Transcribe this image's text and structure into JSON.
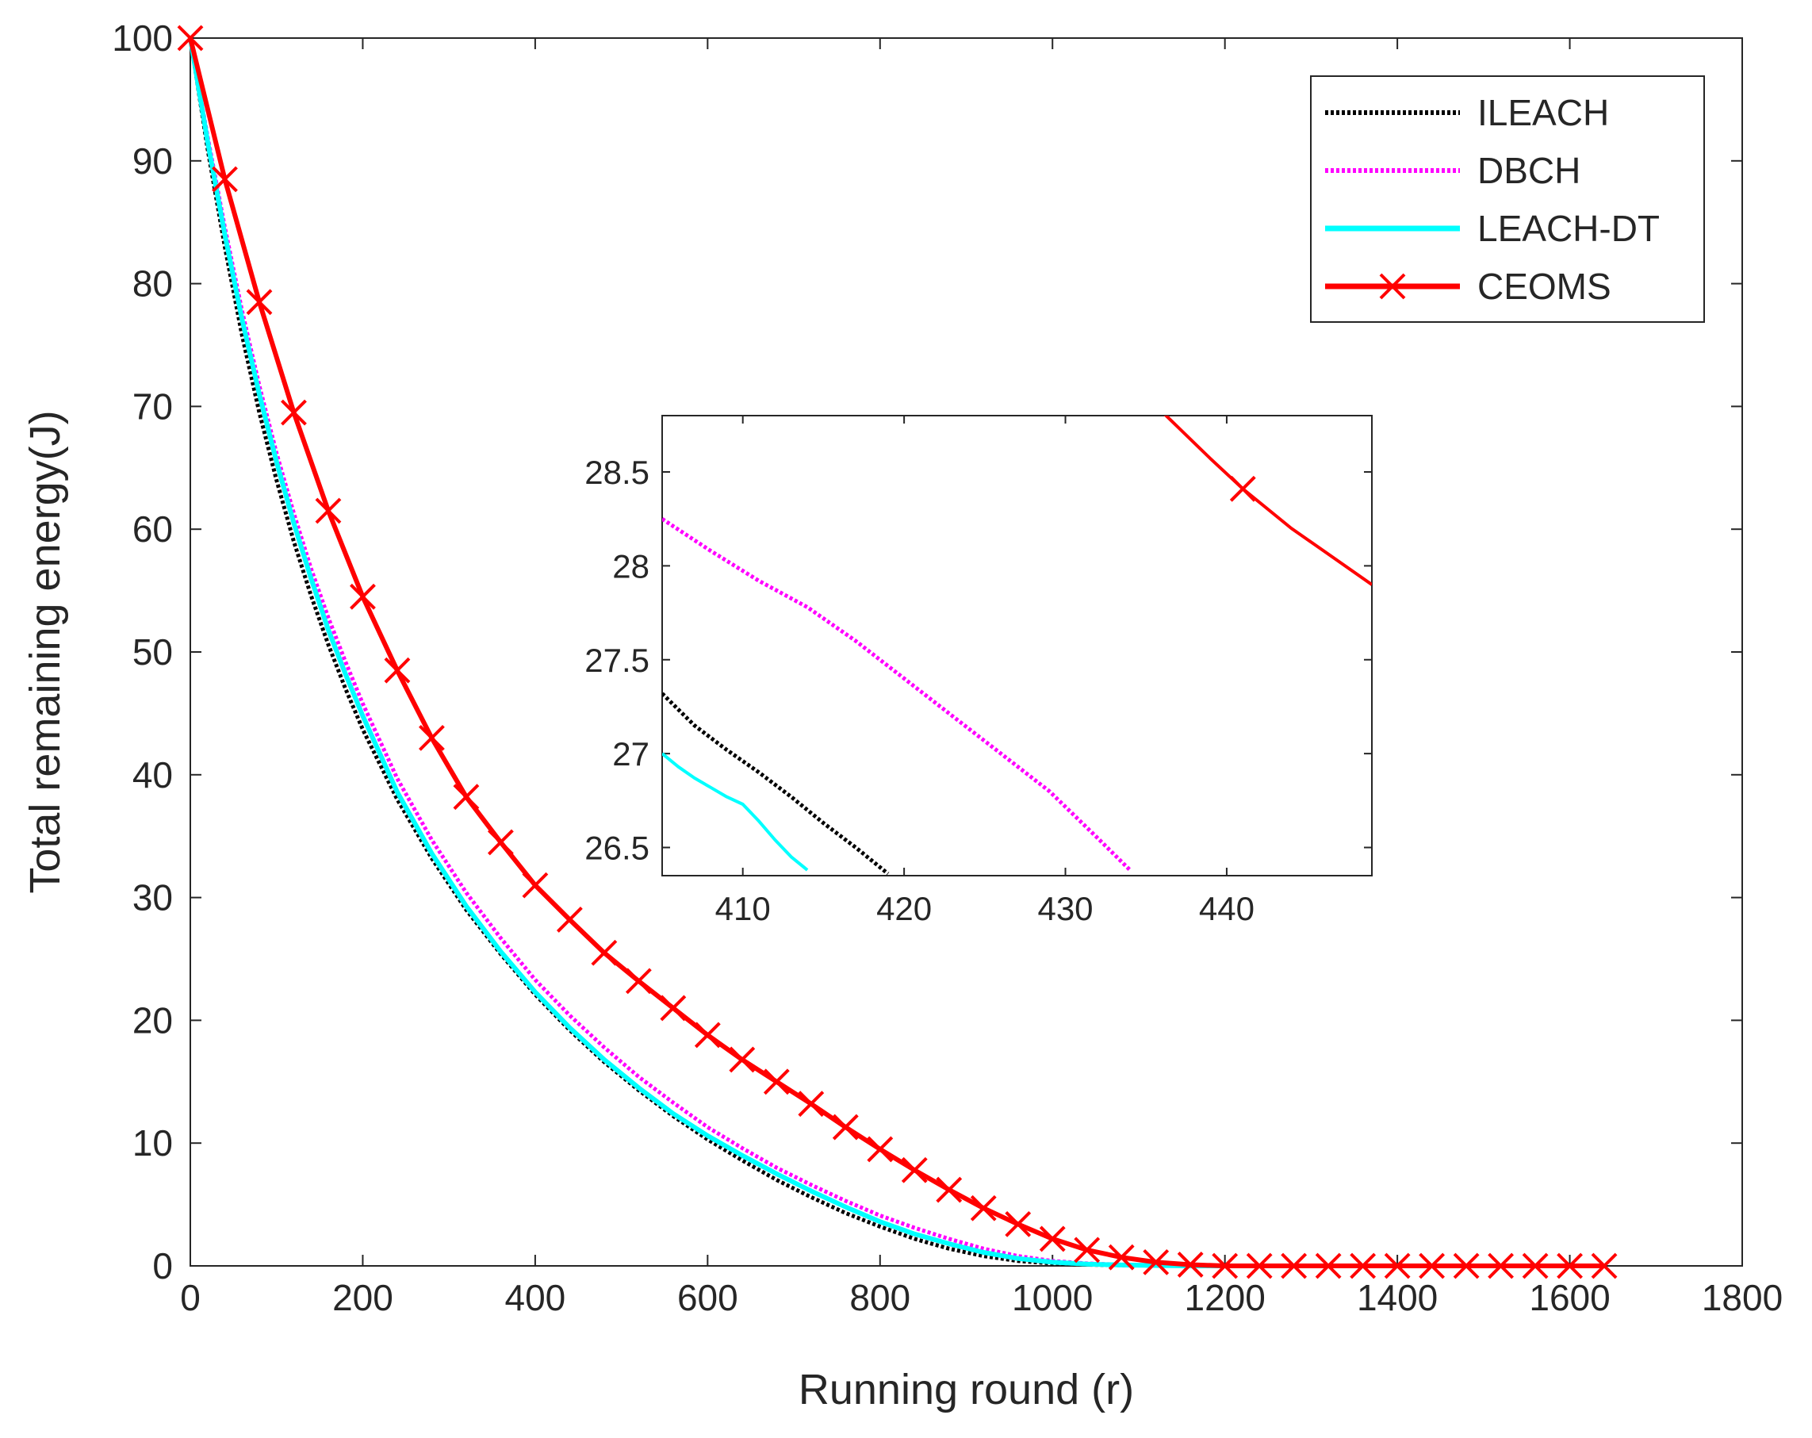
{
  "chart_data": [
    {
      "type": "line",
      "title": "",
      "xlabel": "Running round (r)",
      "ylabel": "Total remaining energy(J)",
      "xlim": [
        0,
        1800
      ],
      "ylim": [
        0,
        100
      ],
      "xticks": [
        0,
        200,
        400,
        600,
        800,
        1000,
        1200,
        1400,
        1600,
        1800
      ],
      "yticks": [
        0,
        10,
        20,
        30,
        40,
        50,
        60,
        70,
        80,
        90,
        100
      ],
      "grid": false,
      "legend_position": "top-right",
      "series": [
        {
          "name": "ILEACH",
          "color": "#000000",
          "style": "dotted",
          "marker": "none",
          "x": [
            0,
            20,
            40,
            60,
            80,
            100,
            120,
            140,
            160,
            180,
            200,
            240,
            280,
            320,
            360,
            400,
            440,
            480,
            520,
            560,
            600,
            640,
            680,
            720,
            760,
            800,
            840,
            880,
            920,
            960,
            1000,
            1040,
            1080,
            1120,
            1160,
            1200
          ],
          "y": [
            100,
            91,
            83,
            75.8,
            69.5,
            64,
            59,
            54.6,
            50.6,
            47,
            43.7,
            38,
            33.2,
            29,
            25.4,
            22.1,
            19.2,
            16.6,
            14.3,
            12.2,
            10.3,
            8.6,
            7,
            5.6,
            4.3,
            3.2,
            2.2,
            1.4,
            0.8,
            0.4,
            0.2,
            0.1,
            0.05,
            0.02,
            0,
            0
          ]
        },
        {
          "name": "DBCH",
          "color": "#ff00ff",
          "style": "dotted",
          "marker": "none",
          "x": [
            0,
            20,
            40,
            60,
            80,
            100,
            120,
            140,
            160,
            180,
            200,
            240,
            280,
            320,
            360,
            400,
            440,
            480,
            520,
            560,
            600,
            640,
            680,
            720,
            760,
            800,
            840,
            880,
            920,
            960,
            1000,
            1040,
            1080,
            1120,
            1160,
            1200,
            1240
          ],
          "y": [
            100,
            92,
            84.6,
            77.8,
            71.7,
            66.2,
            61.3,
            56.8,
            52.8,
            49.2,
            45.8,
            39.7,
            34.7,
            30.4,
            26.7,
            23.3,
            20.4,
            17.8,
            15.4,
            13.3,
            11.3,
            9.6,
            8,
            6.6,
            5.3,
            4.1,
            3.1,
            2.2,
            1.4,
            0.8,
            0.4,
            0.2,
            0.1,
            0.05,
            0.02,
            0,
            0
          ]
        },
        {
          "name": "LEACH-DT",
          "color": "#00ffff",
          "style": "solid",
          "marker": "none",
          "x": [
            0,
            20,
            40,
            60,
            80,
            100,
            120,
            140,
            160,
            180,
            200,
            240,
            280,
            320,
            360,
            400,
            440,
            480,
            520,
            560,
            600,
            640,
            680,
            720,
            760,
            800,
            840,
            880,
            920,
            960,
            1000,
            1040,
            1080,
            1120,
            1160,
            1200
          ],
          "y": [
            100,
            91.6,
            84,
            77.1,
            71,
            65.5,
            60.5,
            56,
            51.8,
            48.2,
            44.8,
            38.6,
            33.6,
            29.3,
            25.6,
            22.3,
            19.4,
            16.8,
            14.5,
            12.4,
            10.6,
            9,
            7.5,
            6.1,
            4.8,
            3.6,
            2.6,
            1.8,
            1.1,
            0.6,
            0.3,
            0.15,
            0.07,
            0.03,
            0,
            0
          ]
        },
        {
          "name": "CEOMS",
          "color": "#ff0000",
          "style": "solid",
          "marker": "x",
          "x": [
            0,
            40,
            80,
            120,
            160,
            200,
            240,
            280,
            320,
            360,
            400,
            440,
            480,
            520,
            560,
            600,
            640,
            680,
            720,
            760,
            800,
            840,
            880,
            920,
            960,
            1000,
            1040,
            1080,
            1120,
            1160,
            1200,
            1240,
            1280,
            1320,
            1360,
            1400,
            1440,
            1480,
            1520,
            1560,
            1600,
            1640
          ],
          "y": [
            100,
            88.5,
            78.5,
            69.5,
            61.5,
            54.5,
            48.5,
            43,
            38.2,
            34.5,
            31,
            28.2,
            25.5,
            23.2,
            21,
            18.8,
            16.8,
            15,
            13.2,
            11.3,
            9.5,
            7.8,
            6.2,
            4.7,
            3.4,
            2.2,
            1.3,
            0.7,
            0.3,
            0.1,
            0,
            0,
            0,
            0,
            0,
            0,
            0,
            0,
            0,
            0,
            0,
            0
          ]
        }
      ]
    },
    {
      "type": "line",
      "title": "",
      "xlabel": "",
      "ylabel": "",
      "xlim": [
        405,
        449
      ],
      "ylim": [
        26.35,
        28.8
      ],
      "xticks": [
        410,
        420,
        430,
        440
      ],
      "xtick_labels": [
        "410",
        "420",
        "430",
        "440"
      ],
      "yticks": [
        26.5,
        27,
        27.5,
        28,
        28.5
      ],
      "ytick_labels": [
        "26.5",
        "27",
        "27.5",
        "28",
        "28.5"
      ],
      "grid": false,
      "legend_position": "none",
      "series": [
        {
          "name": "ILEACH",
          "color": "#000000",
          "style": "dotted",
          "marker": "none",
          "x": [
            405,
            407,
            409,
            411,
            413,
            415,
            417,
            419
          ],
          "y": [
            27.32,
            27.15,
            27.02,
            26.9,
            26.77,
            26.63,
            26.5,
            26.36
          ]
        },
        {
          "name": "DBCH",
          "color": "#ff00ff",
          "style": "dotted",
          "marker": "none",
          "x": [
            405,
            408,
            411,
            414,
            417,
            420,
            423,
            426,
            429,
            432,
            434
          ],
          "y": [
            28.25,
            28.08,
            27.92,
            27.78,
            27.6,
            27.4,
            27.2,
            27.0,
            26.8,
            26.55,
            26.38
          ]
        },
        {
          "name": "LEACH-DT",
          "color": "#00ffff",
          "style": "solid",
          "marker": "none",
          "x": [
            405,
            406,
            407,
            408,
            409,
            410,
            411,
            412,
            413,
            414
          ],
          "y": [
            27.0,
            26.93,
            26.87,
            26.82,
            26.77,
            26.73,
            26.64,
            26.54,
            26.45,
            26.38
          ]
        },
        {
          "name": "CEOMS",
          "color": "#ff0000",
          "style": "solid",
          "marker": "x",
          "marker_x": [
            441
          ],
          "x": [
            436,
            439,
            441,
            444,
            446,
            449
          ],
          "y": [
            28.82,
            28.57,
            28.41,
            28.2,
            28.08,
            27.9
          ]
        }
      ]
    }
  ]
}
